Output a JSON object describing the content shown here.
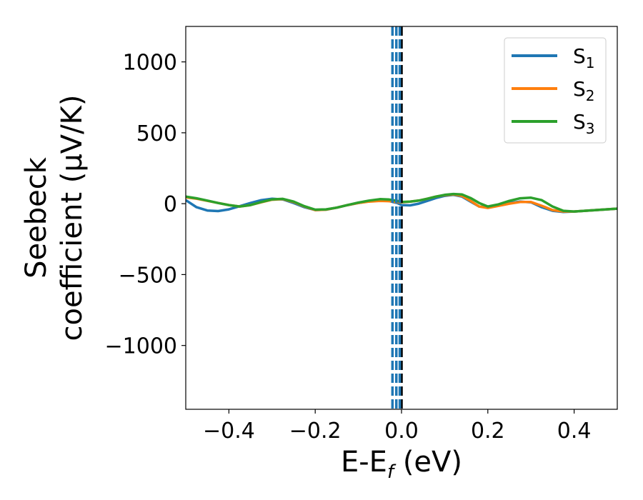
{
  "chart_data": {
    "type": "line",
    "xlabel": {
      "main": "E-E",
      "sub": "f",
      "tail": " (eV)"
    },
    "ylabel": {
      "line1": "Seebeck",
      "line2": "coefficient  (μV/K)"
    },
    "xlim": [
      -0.5,
      0.5
    ],
    "ylim": [
      -1450,
      1250
    ],
    "xticks": [
      -0.4,
      -0.2,
      0.0,
      0.2,
      0.4
    ],
    "xtick_labels": [
      "−0.4",
      "−0.2",
      "0.0",
      "0.2",
      "0.4"
    ],
    "yticks": [
      -1000,
      -500,
      0,
      500,
      1000
    ],
    "ytick_labels": [
      "−1000",
      "−500",
      "0",
      "500",
      "1000"
    ],
    "grid": false,
    "legend_position": "top-right",
    "vlines": [
      {
        "x": 0.0,
        "color": "#000000",
        "style": "dashed"
      },
      {
        "x": -0.004,
        "color": "#1f77b4",
        "style": "dashed"
      },
      {
        "x": -0.012,
        "color": "#1f77b4",
        "style": "dashed"
      },
      {
        "x": -0.021,
        "color": "#1f77b4",
        "style": "dashed"
      }
    ],
    "series": [
      {
        "name": "S",
        "sub": "1",
        "color": "#1f77b4",
        "x": [
          -0.5,
          -0.475,
          -0.45,
          -0.425,
          -0.4,
          -0.375,
          -0.35,
          -0.325,
          -0.3,
          -0.275,
          -0.25,
          -0.225,
          -0.2,
          -0.175,
          -0.15,
          -0.125,
          -0.1,
          -0.075,
          -0.05,
          -0.04,
          -0.03,
          -0.02,
          -0.01,
          0.0,
          0.02,
          0.04,
          0.06,
          0.08,
          0.1,
          0.12,
          0.14,
          0.16,
          0.18,
          0.2,
          0.225,
          0.25,
          0.275,
          0.3,
          0.325,
          0.35,
          0.375,
          0.4,
          0.425,
          0.45,
          0.475,
          0.5
        ],
        "y": [
          25,
          -25,
          -48,
          -52,
          -40,
          -18,
          5,
          25,
          35,
          30,
          5,
          -25,
          -45,
          -42,
          -28,
          -10,
          5,
          18,
          25,
          25,
          20,
          12,
          5,
          -10,
          -12,
          0,
          20,
          40,
          55,
          62,
          50,
          15,
          -20,
          -25,
          -10,
          5,
          15,
          10,
          -25,
          -50,
          -58,
          -55,
          -50,
          -45,
          -40,
          -35
        ]
      },
      {
        "name": "S",
        "sub": "2",
        "color": "#ff7f0e",
        "x": [
          -0.5,
          -0.475,
          -0.45,
          -0.425,
          -0.4,
          -0.375,
          -0.35,
          -0.325,
          -0.3,
          -0.275,
          -0.25,
          -0.225,
          -0.2,
          -0.175,
          -0.15,
          -0.125,
          -0.1,
          -0.075,
          -0.05,
          -0.03,
          -0.01,
          0.0,
          0.02,
          0.04,
          0.06,
          0.08,
          0.1,
          0.12,
          0.14,
          0.16,
          0.18,
          0.2,
          0.225,
          0.25,
          0.275,
          0.3,
          0.325,
          0.35,
          0.375,
          0.4,
          0.425,
          0.45,
          0.475,
          0.5
        ],
        "y": [
          45,
          35,
          20,
          5,
          -10,
          -20,
          -10,
          10,
          28,
          32,
          12,
          -20,
          -45,
          -42,
          -28,
          -10,
          5,
          15,
          20,
          18,
          12,
          10,
          15,
          22,
          35,
          50,
          60,
          65,
          55,
          20,
          -20,
          -30,
          -15,
          0,
          12,
          12,
          -15,
          -45,
          -55,
          -55,
          -50,
          -45,
          -40,
          -35
        ]
      },
      {
        "name": "S",
        "sub": "3",
        "color": "#2ca02c",
        "x": [
          -0.5,
          -0.475,
          -0.45,
          -0.425,
          -0.4,
          -0.375,
          -0.35,
          -0.325,
          -0.3,
          -0.275,
          -0.25,
          -0.225,
          -0.2,
          -0.175,
          -0.15,
          -0.125,
          -0.1,
          -0.075,
          -0.05,
          -0.03,
          -0.01,
          0.0,
          0.02,
          0.04,
          0.06,
          0.08,
          0.1,
          0.12,
          0.14,
          0.16,
          0.18,
          0.2,
          0.225,
          0.25,
          0.275,
          0.3,
          0.325,
          0.35,
          0.375,
          0.4,
          0.425,
          0.45,
          0.475,
          0.5
        ],
        "y": [
          50,
          38,
          22,
          5,
          -10,
          -20,
          -10,
          12,
          30,
          34,
          15,
          -18,
          -42,
          -40,
          -28,
          -10,
          8,
          22,
          32,
          30,
          20,
          12,
          15,
          22,
          35,
          50,
          62,
          68,
          65,
          40,
          5,
          -20,
          -5,
          20,
          38,
          42,
          25,
          -20,
          -50,
          -55,
          -50,
          -45,
          -40,
          -35
        ]
      }
    ]
  }
}
